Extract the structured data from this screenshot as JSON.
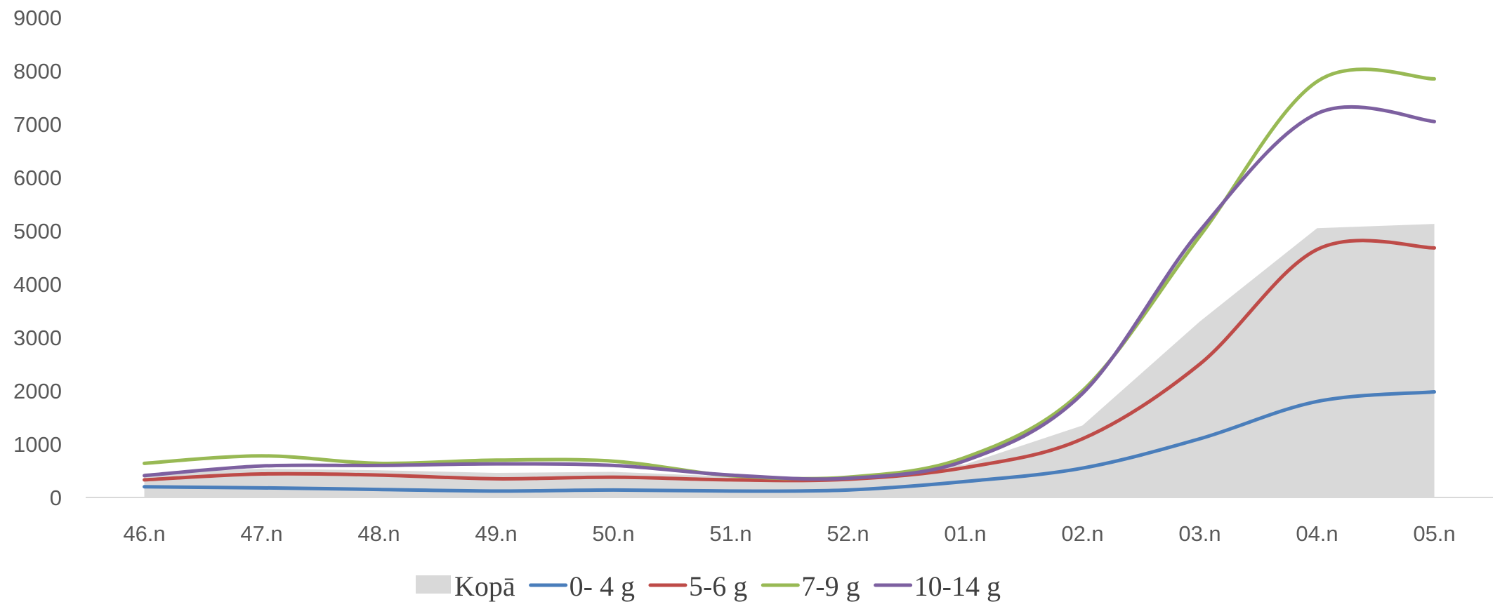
{
  "chart_data": {
    "type": "line",
    "categories": [
      "46.n",
      "47.n",
      "48.n",
      "49.n",
      "50.n",
      "51.n",
      "52.n",
      "01.n",
      "02.n",
      "03.n",
      "04.n",
      "05.n"
    ],
    "ylim": [
      0,
      9000
    ],
    "yticks": [
      0,
      1000,
      2000,
      3000,
      4000,
      5000,
      6000,
      7000,
      8000,
      9000
    ],
    "grid": false,
    "legend_position": "bottom",
    "series": [
      {
        "name": "Kopā",
        "kind": "area",
        "color": "#d9d9d9",
        "values": [
          450,
          540,
          510,
          460,
          480,
          390,
          380,
          620,
          1350,
          3300,
          5050,
          5130
        ]
      },
      {
        "name": "0- 4 g",
        "kind": "line",
        "color": "#4a7ebb",
        "values": [
          200,
          180,
          150,
          120,
          140,
          120,
          140,
          300,
          550,
          1100,
          1800,
          1980
        ]
      },
      {
        "name": "5-6 g",
        "kind": "line",
        "color": "#be4b48",
        "values": [
          330,
          440,
          420,
          350,
          380,
          330,
          340,
          560,
          1100,
          2500,
          4650,
          4680
        ]
      },
      {
        "name": "7-9 g",
        "kind": "line",
        "color": "#98b954",
        "values": [
          640,
          780,
          640,
          700,
          680,
          410,
          380,
          750,
          2000,
          4900,
          7800,
          7850
        ]
      },
      {
        "name": "10-14 g",
        "kind": "line",
        "color": "#7d60a0",
        "values": [
          410,
          590,
          600,
          630,
          600,
          420,
          360,
          690,
          1950,
          5000,
          7200,
          7050
        ]
      }
    ]
  }
}
